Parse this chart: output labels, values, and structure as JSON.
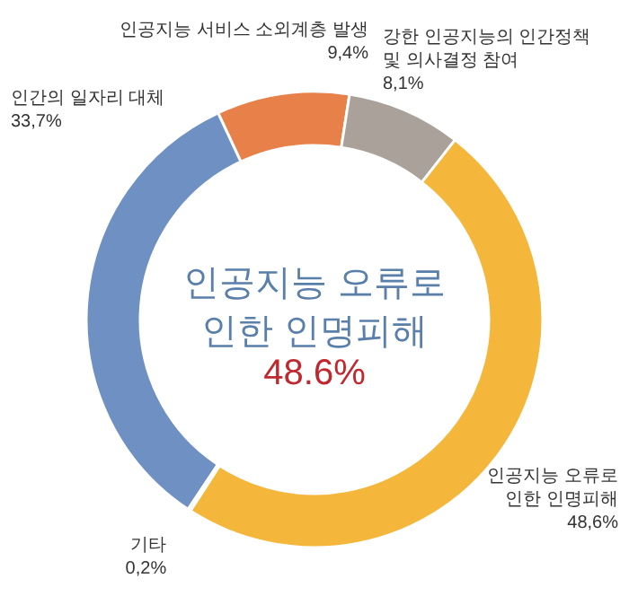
{
  "chart_data": {
    "type": "donut",
    "categories": [
      "인공지능 서비스 소외계층 발생",
      "강한 인공지능의 인간정책\n및 의사결정 참여",
      "인공지능 오류로\n인한 인명피해",
      "기타",
      "인간의 일자리 대체"
    ],
    "values": [
      9.4,
      8.1,
      48.6,
      0.2,
      33.7
    ],
    "value_labels": [
      "9,4%",
      "8,1%",
      "48,6%",
      "0,2%",
      "33,7%"
    ],
    "colors": [
      "#e8804a",
      "#aaa19b",
      "#f4b73b",
      "#9a9a9a",
      "#6f90c2"
    ],
    "annotations": [
      "인공지능 오류로\n인한 인명피해",
      "48.6%"
    ]
  }
}
